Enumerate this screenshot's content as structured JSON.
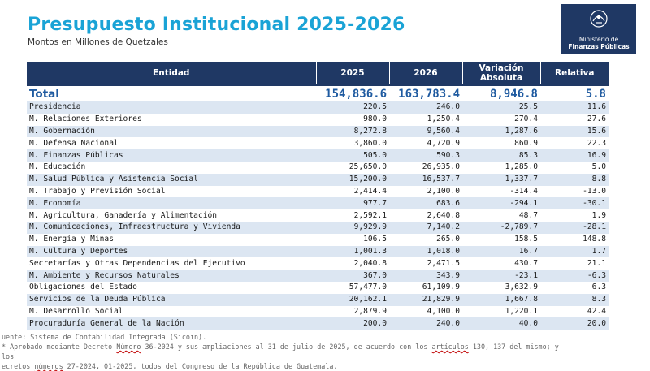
{
  "header": {
    "title": "Presupuesto Institucional 2025-2026",
    "subtitle": "Montos en Millones de Quetzales"
  },
  "logo": {
    "line1": "Ministerio de",
    "line2": "Finanzas Públicas",
    "emblem": "coat-of-arms-icon"
  },
  "table": {
    "headers": [
      "Entidad",
      "2025",
      "2026",
      "Variación Absoluta",
      "Relativa"
    ],
    "total": {
      "entity": "Total",
      "y2025": "154,836.6",
      "y2026": "163,783.4",
      "abs": "8,946.8",
      "rel": "5.8"
    },
    "rows": [
      {
        "entity": "Presidencia",
        "y2025": "220.5",
        "y2026": "246.0",
        "abs": "25.5",
        "rel": "11.6"
      },
      {
        "entity": "M. Relaciones Exteriores",
        "y2025": "980.0",
        "y2026": "1,250.4",
        "abs": "270.4",
        "rel": "27.6"
      },
      {
        "entity": "M. Gobernación",
        "y2025": "8,272.8",
        "y2026": "9,560.4",
        "abs": "1,287.6",
        "rel": "15.6"
      },
      {
        "entity": "M. Defensa Nacional",
        "y2025": "3,860.0",
        "y2026": "4,720.9",
        "abs": "860.9",
        "rel": "22.3"
      },
      {
        "entity": "M. Finanzas Públicas",
        "y2025": "505.0",
        "y2026": "590.3",
        "abs": "85.3",
        "rel": "16.9"
      },
      {
        "entity": "M. Educación",
        "y2025": "25,650.0",
        "y2026": "26,935.0",
        "abs": "1,285.0",
        "rel": "5.0"
      },
      {
        "entity": "M. Salud Pública y Asistencia Social",
        "y2025": "15,200.0",
        "y2026": "16,537.7",
        "abs": "1,337.7",
        "rel": "8.8"
      },
      {
        "entity": "M. Trabajo y Previsión Social",
        "y2025": "2,414.4",
        "y2026": "2,100.0",
        "abs": "-314.4",
        "rel": "-13.0"
      },
      {
        "entity": "M. Economía",
        "y2025": "977.7",
        "y2026": "683.6",
        "abs": "-294.1",
        "rel": "-30.1"
      },
      {
        "entity": "M. Agricultura, Ganadería y Alimentación",
        "y2025": "2,592.1",
        "y2026": "2,640.8",
        "abs": "48.7",
        "rel": "1.9"
      },
      {
        "entity": "M. Comunicaciones, Infraestructura y Vivienda",
        "y2025": "9,929.9",
        "y2026": "7,140.2",
        "abs": "-2,789.7",
        "rel": "-28.1"
      },
      {
        "entity": "M. Energía y Minas",
        "y2025": "106.5",
        "y2026": "265.0",
        "abs": "158.5",
        "rel": "148.8"
      },
      {
        "entity": "M. Cultura y Deportes",
        "y2025": "1,001.3",
        "y2026": "1,018.0",
        "abs": "16.7",
        "rel": "1.7"
      },
      {
        "entity": "Secretarías y Otras Dependencias del Ejecutivo",
        "y2025": "2,040.8",
        "y2026": "2,471.5",
        "abs": "430.7",
        "rel": "21.1"
      },
      {
        "entity": "M. Ambiente y Recursos Naturales",
        "y2025": "367.0",
        "y2026": "343.9",
        "abs": "-23.1",
        "rel": "-6.3"
      },
      {
        "entity": "Obligaciones del Estado",
        "y2025": "57,477.0",
        "y2026": "61,109.9",
        "abs": "3,632.9",
        "rel": "6.3"
      },
      {
        "entity": "Servicios de la Deuda Pública",
        "y2025": "20,162.1",
        "y2026": "21,829.9",
        "abs": "1,667.8",
        "rel": "8.3"
      },
      {
        "entity": "M. Desarrollo Social",
        "y2025": "2,879.9",
        "y2026": "4,100.0",
        "abs": "1,220.1",
        "rel": "42.4"
      },
      {
        "entity": "Procuraduría General de la Nación",
        "y2025": "200.0",
        "y2026": "240.0",
        "abs": "40.0",
        "rel": "20.0"
      }
    ]
  },
  "notes": {
    "source": "uente: Sistema de Contabilidad Integrada (Sicoin).",
    "note1_a": " Aprobado mediante Decreto ",
    "note1_b": "Número",
    "note1_c": " 36-2024 y sus ampliaciones al 31 de julio de 2025, de acuerdo con los ",
    "note1_d": "artículos",
    "note1_e": " 130, 137 del mismo; y los",
    "note2_a": "ecretos ",
    "note2_b": "números",
    "note2_c": " 27-2024, 01-2025, todos del Congreso de la República de Guatemala."
  }
}
